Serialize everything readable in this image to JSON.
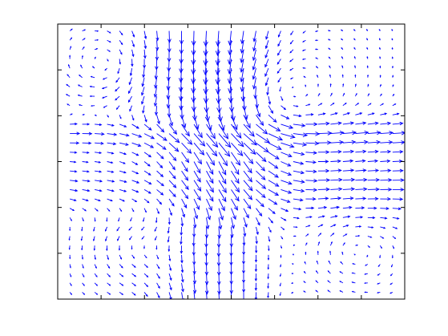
{
  "chart_data": {
    "type": "quiver",
    "title": "",
    "xlabel": "",
    "ylabel": "",
    "xlim": [
      0,
      1
    ],
    "ylim": [
      0,
      1
    ],
    "grid": false,
    "legend": "none",
    "tick_labels_shown": false,
    "tick_count_x": 8,
    "tick_count_y": 6,
    "field_grid": {
      "cols": 27,
      "rows": 29
    },
    "arrow_color": "#0000ff",
    "axes_color": "#000000",
    "background": "#ffffff",
    "vortices": [
      {
        "x": 0.15,
        "y": 0.85,
        "strength": -0.045
      },
      {
        "x": 0.6,
        "y": 0.75,
        "strength": 0.05
      },
      {
        "x": 0.22,
        "y": 0.2,
        "strength": 0.05
      },
      {
        "x": 0.85,
        "y": 0.18,
        "strength": -0.035
      },
      {
        "x": 0.45,
        "y": 0.5,
        "strength": -0.02
      }
    ],
    "flows": [
      {
        "name": "downward",
        "x_center": 0.45,
        "spread": 0.18,
        "amount": -0.9
      },
      {
        "name": "rightward_left_band",
        "y_center": 0.42,
        "spread": 0.12,
        "amount": 0.6
      },
      {
        "name": "rightward_upper_right_band",
        "y_center": 0.6,
        "spread": 0.07,
        "amount": 0.7
      }
    ]
  }
}
